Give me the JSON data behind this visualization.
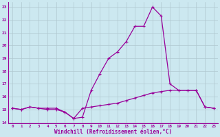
{
  "xlabel": "Windchill (Refroidissement éolien,°C)",
  "hours": [
    0,
    1,
    2,
    3,
    4,
    5,
    6,
    7,
    8,
    9,
    10,
    11,
    12,
    13,
    14,
    15,
    16,
    17,
    18,
    19,
    20,
    21,
    22,
    23
  ],
  "temp": [
    15.1,
    15.0,
    15.2,
    15.1,
    15.1,
    15.1,
    14.8,
    14.3,
    14.4,
    16.5,
    17.8,
    19.0,
    19.5,
    20.3,
    21.5,
    21.5,
    23.0,
    22.3,
    17.0,
    16.5,
    16.5,
    16.5,
    15.2,
    15.1
  ],
  "windchill": [
    15.1,
    15.0,
    15.2,
    15.1,
    15.0,
    15.0,
    14.8,
    14.3,
    15.1,
    15.2,
    15.3,
    15.4,
    15.5,
    15.7,
    15.9,
    16.1,
    16.3,
    16.4,
    16.5,
    16.5,
    16.5,
    16.5,
    15.2,
    15.1
  ],
  "line_color": "#990099",
  "bg_color": "#cce8f0",
  "grid_color": "#b0c8d0",
  "ylim": [
    13.9,
    23.4
  ],
  "yticks": [
    14,
    15,
    16,
    17,
    18,
    19,
    20,
    21,
    22,
    23
  ],
  "figsize": [
    3.2,
    2.0
  ],
  "dpi": 100
}
